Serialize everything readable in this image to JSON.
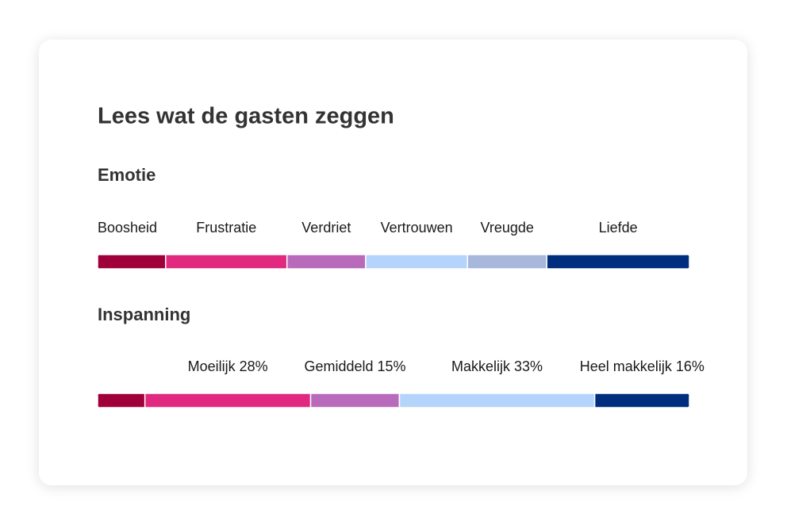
{
  "title": "Lees wat de gasten zeggen",
  "chart_data": [
    {
      "type": "stacked_bar",
      "title": "Emotie",
      "categories": [
        "Boosheid",
        "Frustratie",
        "Verdriet",
        "Vertrouwen",
        "Vreugde",
        "Liefde"
      ],
      "values": [
        11.5,
        20.5,
        13.3,
        17.2,
        13.4,
        24.1
      ],
      "colors": [
        "#a0003a",
        "#e0297f",
        "#b96bbb",
        "#b5d4fb",
        "#a8b7dc",
        "#002d7d"
      ]
    },
    {
      "type": "stacked_bar",
      "title": "Inspanning",
      "categories": [
        null,
        "Moeilijk 28%",
        "Gemiddeld 15%",
        "Makkelijk 33%",
        "Heel makkelijk 16%"
      ],
      "values": [
        8,
        28,
        15,
        33,
        16
      ],
      "colors": [
        "#a0003a",
        "#e0297f",
        "#b96bbb",
        "#b5d4fb",
        "#002d7d"
      ]
    }
  ]
}
